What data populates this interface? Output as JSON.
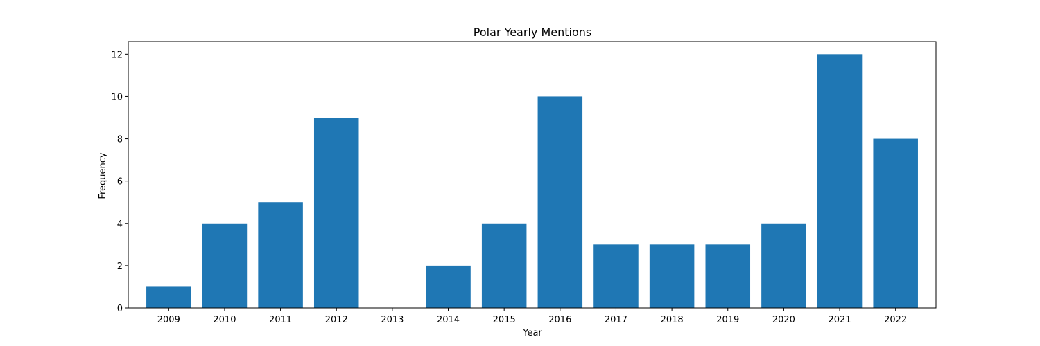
{
  "chart_data": {
    "type": "bar",
    "title": "Polar Yearly Mentions",
    "xlabel": "Year",
    "ylabel": "Frequency",
    "categories": [
      "2009",
      "2010",
      "2011",
      "2012",
      "2013",
      "2014",
      "2015",
      "2016",
      "2017",
      "2018",
      "2019",
      "2020",
      "2021",
      "2022"
    ],
    "values": [
      1,
      4,
      5,
      9,
      0,
      2,
      4,
      10,
      3,
      3,
      3,
      4,
      12,
      8
    ],
    "ylim": [
      0,
      12.6
    ],
    "yticks": [
      "0",
      "2",
      "4",
      "6",
      "8",
      "10",
      "12"
    ],
    "grid": false,
    "legend": "none",
    "colors": {
      "bar": "#1f77b4",
      "axis": "#000000",
      "background": "#ffffff"
    }
  }
}
